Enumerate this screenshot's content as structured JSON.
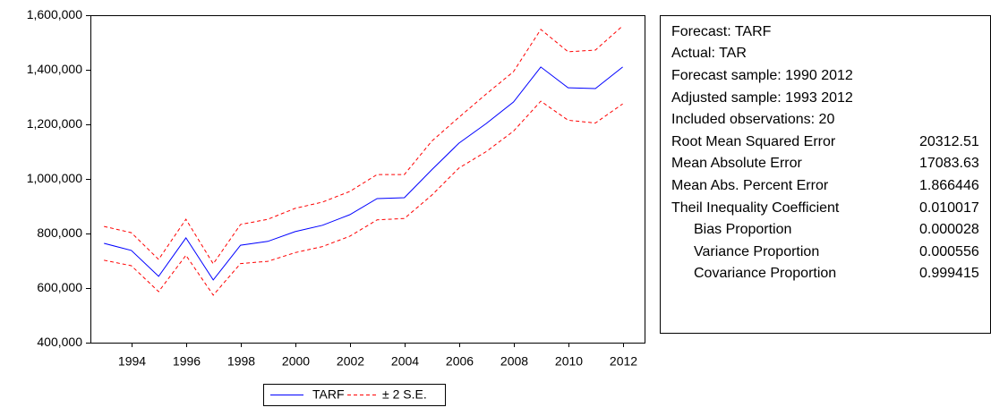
{
  "chart_data": {
    "type": "line",
    "x": [
      1993,
      1994,
      1995,
      1996,
      1997,
      1998,
      1999,
      2000,
      2001,
      2002,
      2003,
      2004,
      2005,
      2006,
      2007,
      2008,
      2009,
      2010,
      2011,
      2012
    ],
    "xlim": [
      1992.5,
      2012.8
    ],
    "xticks": [
      1994,
      1996,
      1998,
      2000,
      2002,
      2004,
      2006,
      2008,
      2010,
      2012
    ],
    "ylim": [
      400000,
      1600000
    ],
    "yticks": [
      {
        "value": 400000,
        "label": "400,000"
      },
      {
        "value": 600000,
        "label": "600,000"
      },
      {
        "value": 800000,
        "label": "800,000"
      },
      {
        "value": 1000000,
        "label": "1,000,000"
      },
      {
        "value": 1200000,
        "label": "1,200,000"
      },
      {
        "value": 1400000,
        "label": "1,400,000"
      },
      {
        "value": 1600000,
        "label": "1,600,000"
      }
    ],
    "series": [
      {
        "name": "TARF",
        "color": "#0000ff",
        "values": [
          764000,
          738000,
          643000,
          784000,
          630000,
          757000,
          771000,
          807000,
          830000,
          869000,
          928000,
          931000,
          1033000,
          1131000,
          1203000,
          1282000,
          1410000,
          1334000,
          1331000,
          1410000
        ]
      }
    ],
    "band": {
      "name": "± 2 S.E.",
      "color": "#ff0000",
      "upper": [
        826000,
        803000,
        705000,
        852000,
        689000,
        833000,
        852000,
        892000,
        915000,
        954000,
        1016000,
        1016000,
        1138000,
        1226000,
        1311000,
        1393000,
        1548000,
        1466000,
        1472000,
        1561000
      ],
      "lower": [
        702000,
        682000,
        587000,
        720000,
        574000,
        690000,
        698000,
        730000,
        752000,
        790000,
        850000,
        855000,
        940000,
        1040000,
        1100000,
        1175000,
        1285000,
        1215000,
        1205000,
        1275000
      ]
    }
  },
  "stats": {
    "header": [
      "Forecast: TARF",
      "Actual: TAR",
      "Forecast sample: 1990 2012",
      "Adjusted sample: 1993 2012",
      "Included observations: 20"
    ],
    "rows": [
      [
        "Root Mean Squared Error",
        "20312.51"
      ],
      [
        "Mean Absolute Error",
        "17083.63"
      ],
      [
        "Mean Abs. Percent Error",
        "1.866446"
      ],
      [
        "Theil Inequality Coefficient",
        "0.010017"
      ],
      [
        "Bias Proportion",
        "0.000028"
      ],
      [
        "Variance Proportion",
        "0.000556"
      ],
      [
        "Covariance Proportion",
        "0.999415"
      ]
    ]
  }
}
